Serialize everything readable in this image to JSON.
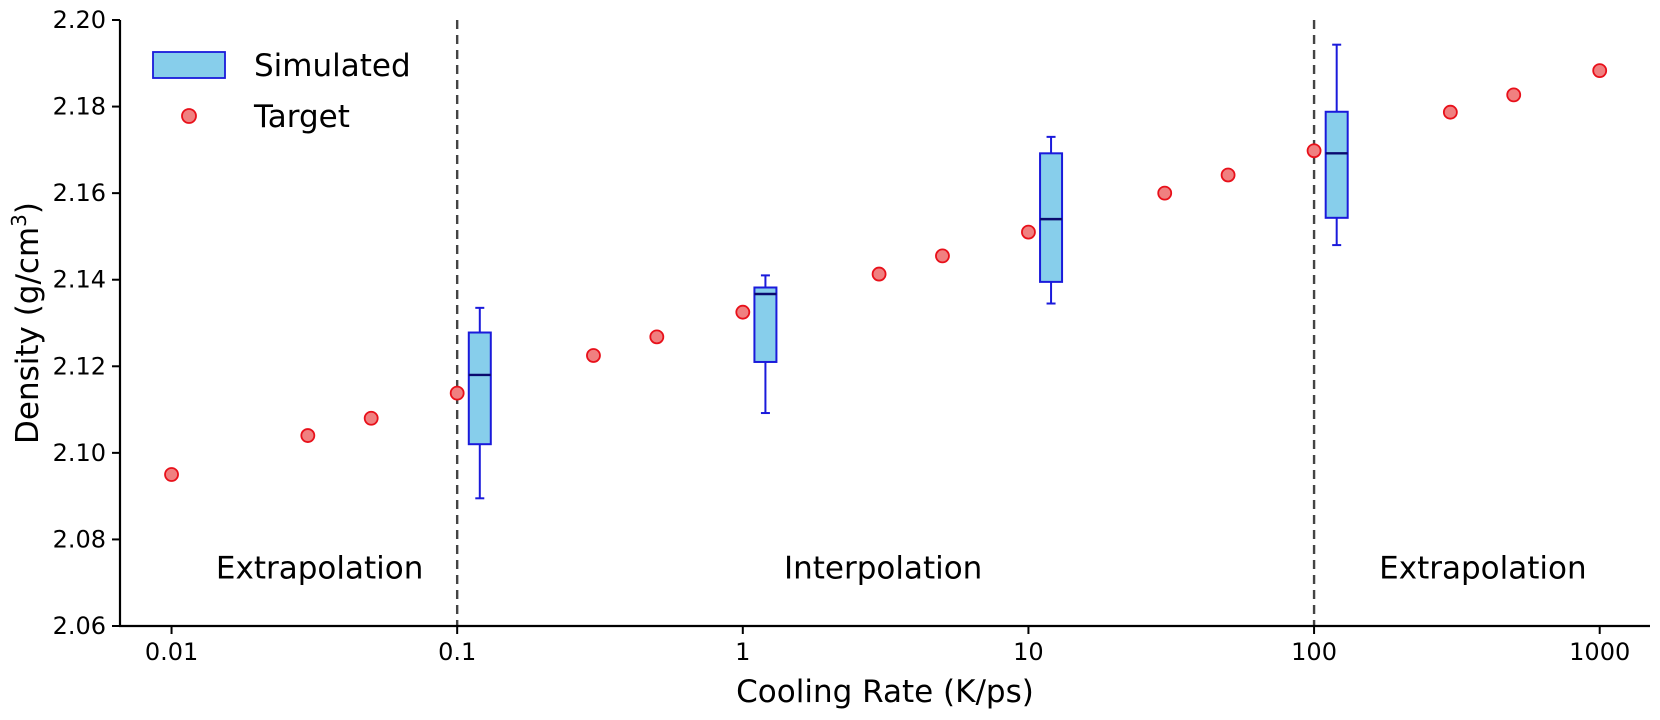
{
  "chart_data": {
    "type": "scatter",
    "xscale": "log",
    "xlabel": "Cooling Rate (K/ps)",
    "ylabel": "Density (g/cm",
    "ylabel_sup": "3",
    "ylabel_close": ")",
    "xlim": [
      0.0066,
      1500
    ],
    "ylim": [
      2.06,
      2.2
    ],
    "x_ticks": [
      0.01,
      0.1,
      1,
      10,
      100,
      1000
    ],
    "x_tick_labels": [
      "0.01",
      "0.1",
      "1",
      "10",
      "100",
      "1000"
    ],
    "y_ticks": [
      2.06,
      2.08,
      2.1,
      2.12,
      2.14,
      2.16,
      2.18,
      2.2
    ],
    "y_tick_labels": [
      "2.06",
      "2.08",
      "2.10",
      "2.12",
      "2.14",
      "2.16",
      "2.18",
      "2.20"
    ],
    "legend": {
      "position": "top-left",
      "entries": [
        {
          "label": "Simulated",
          "kind": "box"
        },
        {
          "label": "Target",
          "kind": "marker"
        }
      ]
    },
    "colors": {
      "box_fill": "#87ceeb",
      "box_edge": "#1a1adb",
      "median": "#0a0a6e",
      "target_fill": "#f08080",
      "target_edge": "#e8101a",
      "divider": "#444444"
    },
    "target_series": {
      "name": "Target",
      "x": [
        0.01,
        0.03,
        0.05,
        0.1,
        0.3,
        0.5,
        1,
        3,
        5,
        10,
        30,
        50,
        100,
        300,
        500,
        1000
      ],
      "y": [
        2.095,
        2.104,
        2.108,
        2.1138,
        2.1225,
        2.1268,
        2.1325,
        2.1413,
        2.1455,
        2.151,
        2.16,
        2.1642,
        2.1698,
        2.1787,
        2.1827,
        2.1883
      ]
    },
    "simulated_series": {
      "name": "Simulated",
      "boxes": [
        {
          "x": 0.12,
          "whisker_low": 2.0895,
          "q1": 2.102,
          "median": 2.118,
          "q3": 2.1278,
          "whisker_high": 2.1335
        },
        {
          "x": 1.2,
          "whisker_low": 2.1092,
          "q1": 2.121,
          "median": 2.1367,
          "q3": 2.1382,
          "whisker_high": 2.141
        },
        {
          "x": 12,
          "whisker_low": 2.1345,
          "q1": 2.1395,
          "median": 2.154,
          "q3": 2.1692,
          "whisker_high": 2.173
        },
        {
          "x": 120,
          "whisker_low": 2.148,
          "q1": 2.1543,
          "median": 2.1692,
          "q3": 2.1788,
          "whisker_high": 2.1943
        }
      ]
    },
    "dividers": [
      0.1,
      100
    ],
    "regions": [
      {
        "label": "Extrapolation",
        "x": 0.033,
        "y": 2.071
      },
      {
        "label": "Interpolation",
        "x": 3.1,
        "y": 2.071
      },
      {
        "label": "Extrapolation",
        "x": 390,
        "y": 2.071
      }
    ]
  }
}
